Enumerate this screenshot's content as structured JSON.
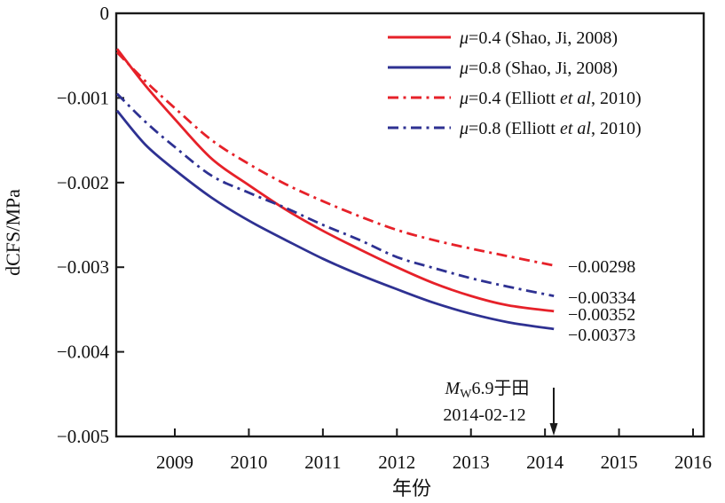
{
  "figure": {
    "background": "#ffffff",
    "axis_color": "#1a1a1a",
    "red": "#e62129",
    "blue": "#2e3192"
  },
  "chart_data": {
    "type": "line",
    "title": "",
    "xlabel": "年份",
    "ylabel": "dCFS/MPa",
    "xlim": [
      2008.21,
      2016.15
    ],
    "ylim": [
      -0.005,
      0
    ],
    "grid": false,
    "legend_position": "top-right-inside",
    "x_ticks": [
      "2009",
      "2010",
      "2011",
      "2012",
      "2013",
      "2014",
      "2015",
      "2016"
    ],
    "x_tick_values": [
      2009,
      2010,
      2011,
      2012,
      2013,
      2014,
      2015,
      2016
    ],
    "y_ticks": [
      "0",
      "−0.001",
      "−0.002",
      "−0.003",
      "−0.004",
      "−0.005"
    ],
    "y_tick_values": [
      0,
      -0.001,
      -0.002,
      -0.003,
      -0.004,
      -0.005
    ],
    "series": [
      {
        "name": "μ=0.4 (Shao, Ji, 2008)",
        "color": "#e62129",
        "style": "solid",
        "end_label": "−0.00352",
        "x": [
          2008.22,
          2008.6,
          2009,
          2009.5,
          2010,
          2010.5,
          2011,
          2011.5,
          2012,
          2012.5,
          2013,
          2013.5,
          2014.12
        ],
        "y": [
          -0.00042,
          -0.00085,
          -0.00125,
          -0.00172,
          -0.00203,
          -0.00232,
          -0.00257,
          -0.00279,
          -0.003,
          -0.00319,
          -0.00334,
          -0.00345,
          -0.00352
        ]
      },
      {
        "name": "μ=0.8 (Shao, Ji, 2008)",
        "color": "#2e3192",
        "style": "solid",
        "end_label": "−0.00373",
        "x": [
          2008.22,
          2008.6,
          2009,
          2009.5,
          2010,
          2010.5,
          2011,
          2011.5,
          2012,
          2012.5,
          2013,
          2013.5,
          2014.12
        ],
        "y": [
          -0.00115,
          -0.00155,
          -0.00185,
          -0.00218,
          -0.00245,
          -0.00268,
          -0.0029,
          -0.00309,
          -0.00326,
          -0.00342,
          -0.00355,
          -0.00365,
          -0.00373
        ]
      },
      {
        "name": "μ=0.4 (Elliott et al, 2010)",
        "color": "#e62129",
        "style": "dashdot",
        "end_label": "−0.00298",
        "x": [
          2008.22,
          2008.6,
          2009,
          2009.5,
          2010,
          2010.5,
          2011,
          2011.5,
          2012,
          2012.5,
          2013,
          2013.5,
          2014.12
        ],
        "y": [
          -0.00046,
          -0.0008,
          -0.00112,
          -0.0015,
          -0.00178,
          -0.00202,
          -0.00222,
          -0.0024,
          -0.00256,
          -0.00268,
          -0.00278,
          -0.00287,
          -0.00298
        ]
      },
      {
        "name": "μ=0.8 (Elliott et al, 2010)",
        "color": "#2e3192",
        "style": "dashdot",
        "end_label": "−0.00334",
        "x": [
          2008.22,
          2008.6,
          2009,
          2009.5,
          2010,
          2010.5,
          2011,
          2011.5,
          2012,
          2012.5,
          2013,
          2013.5,
          2014.12
        ],
        "y": [
          -0.00095,
          -0.00128,
          -0.00158,
          -0.00192,
          -0.00212,
          -0.0023,
          -0.0025,
          -0.00268,
          -0.00288,
          -0.00301,
          -0.00313,
          -0.00323,
          -0.00334
        ]
      }
    ],
    "legend": [
      {
        "mu": "μ",
        "pre": "=0.4 (Shao, Ji, 2008)",
        "etal": "",
        "post": "",
        "color": "#e62129",
        "style": "solid"
      },
      {
        "mu": "μ",
        "pre": "=0.8 (Shao, Ji, 2008)",
        "etal": "",
        "post": "",
        "color": "#2e3192",
        "style": "solid"
      },
      {
        "mu": "μ",
        "pre": "=0.4 (Elliott ",
        "etal": "et al",
        "post": ", 2010)",
        "color": "#e62129",
        "style": "dashdot"
      },
      {
        "mu": "μ",
        "pre": "=0.8 (Elliott ",
        "etal": "et al",
        "post": ", 2010)",
        "color": "#2e3192",
        "style": "dashdot"
      }
    ],
    "annotation": {
      "m": "M",
      "m_sub": "W",
      "line1_rest": "6.9于田",
      "line2": "2014-02-12",
      "arrow_x": 2014.12
    }
  }
}
